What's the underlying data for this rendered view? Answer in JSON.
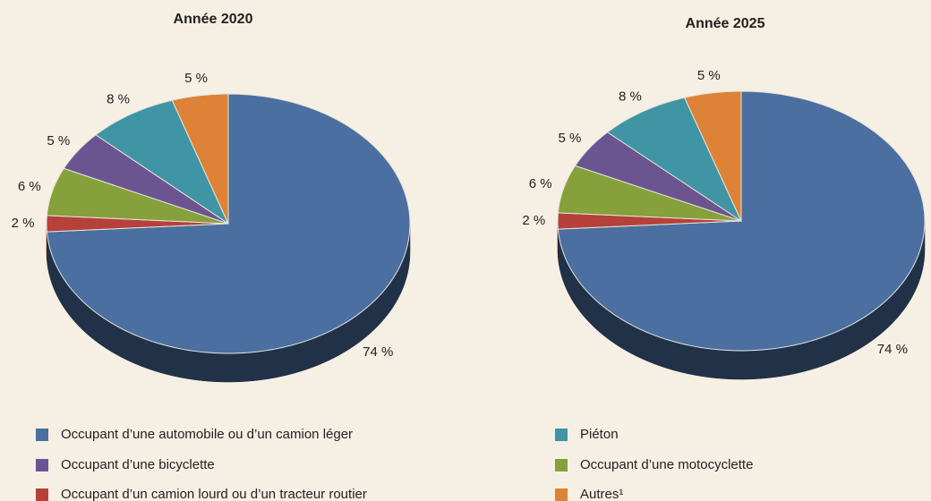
{
  "chart_data": [
    {
      "type": "pie",
      "title": "Année 2020",
      "categories": [
        "Occupant d’une automobile ou d’un camion léger",
        "Occupant d’un camion lourd ou d’un tracteur routier",
        "Occupant d’une motocyclette",
        "Occupant d’une bicyclette",
        "Piéton",
        "Autres¹"
      ],
      "values": [
        74,
        2,
        6,
        5,
        8,
        5
      ],
      "value_labels": [
        "74 %",
        "2 %",
        "6 %",
        "5 %",
        "8 %",
        "5 %"
      ],
      "colors": [
        "#4a6fa0",
        "#b5413a",
        "#86a03c",
        "#6b5591",
        "#3f95a3",
        "#dd8236"
      ]
    },
    {
      "type": "pie",
      "title": "Année 2025",
      "categories": [
        "Occupant d’une automobile ou d’un camion léger",
        "Occupant d’un camion lourd ou d’un tracteur routier",
        "Occupant d’une motocyclette",
        "Occupant d’une bicyclette",
        "Piéton",
        "Autres¹"
      ],
      "values": [
        74,
        2,
        6,
        5,
        8,
        5
      ],
      "value_labels": [
        "74 %",
        "2 %",
        "6 %",
        "5 %",
        "8 %",
        "5 %"
      ],
      "colors": [
        "#4a6fa0",
        "#b5413a",
        "#86a03c",
        "#6b5591",
        "#3f95a3",
        "#dd8236"
      ]
    }
  ]
}
